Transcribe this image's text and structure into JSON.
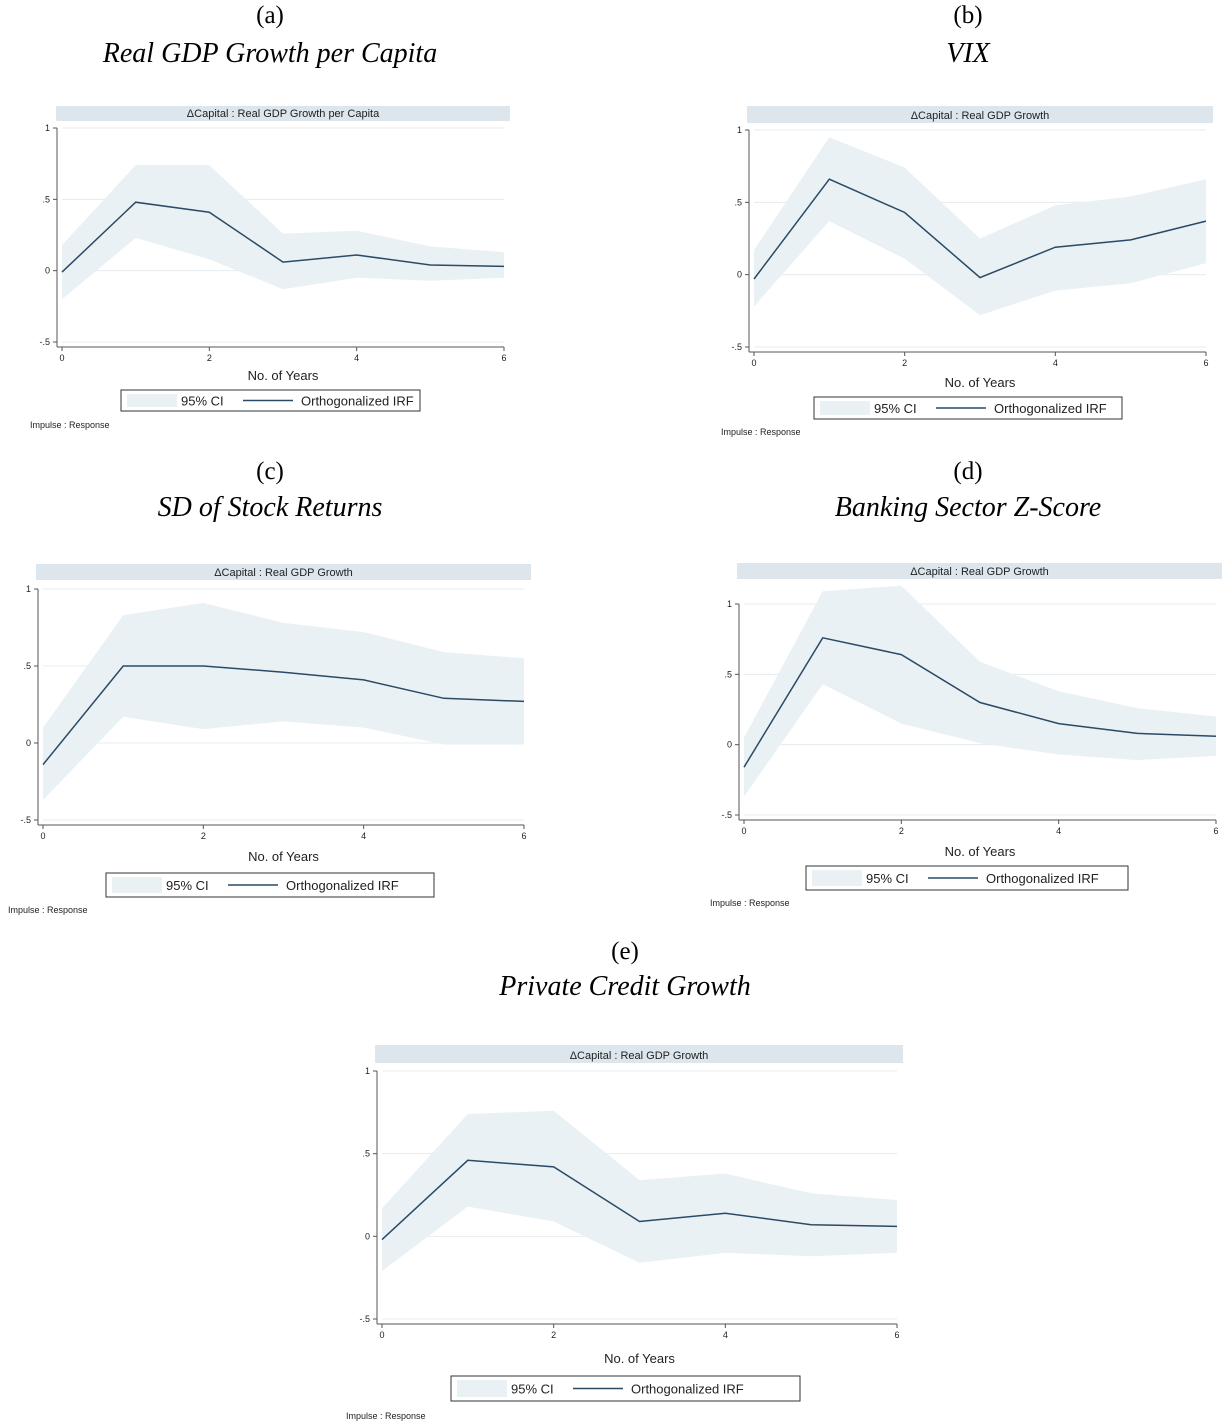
{
  "figure": {
    "panels": [
      {
        "letter": "(a)",
        "name": "Real GDP Growth per Capita",
        "chart_data": {
          "type": "line",
          "title": "ΔCapital : Real GDP Growth per Capita",
          "xlabel": "No. of Years",
          "ylabel": "",
          "x": [
            0,
            1,
            2,
            3,
            4,
            5,
            6
          ],
          "xticks": [
            "0",
            "2",
            "4",
            "6"
          ],
          "yticks": [
            "-.5",
            "0",
            ".5",
            "1"
          ],
          "xlim": [
            0,
            6
          ],
          "ylim": [
            -0.5,
            1
          ],
          "grid": true,
          "legend_position": "bottom",
          "series": [
            {
              "name": "Orthogonalized IRF",
              "kind": "line",
              "values": [
                -0.01,
                0.48,
                0.41,
                0.06,
                0.11,
                0.04,
                0.03
              ],
              "color": "#2a4a66"
            },
            {
              "name": "95% CI",
              "kind": "band",
              "lower": [
                -0.2,
                0.23,
                0.08,
                -0.13,
                -0.05,
                -0.07,
                -0.05
              ],
              "upper": [
                0.18,
                0.74,
                0.74,
                0.26,
                0.28,
                0.17,
                0.13
              ],
              "color": "#eaf1f4"
            }
          ],
          "note": "Impulse : Response"
        }
      },
      {
        "letter": "(b)",
        "name": "VIX",
        "chart_data": {
          "type": "line",
          "title": "ΔCapital : Real GDP Growth",
          "xlabel": "No. of Years",
          "ylabel": "",
          "x": [
            0,
            1,
            2,
            3,
            4,
            5,
            6
          ],
          "xticks": [
            "0",
            "2",
            "4",
            "6"
          ],
          "yticks": [
            "-.5",
            "0",
            ".5",
            "1"
          ],
          "xlim": [
            0,
            6
          ],
          "ylim": [
            -0.5,
            1
          ],
          "grid": true,
          "legend_position": "bottom",
          "series": [
            {
              "name": "Orthogonalized IRF",
              "kind": "line",
              "values": [
                -0.03,
                0.66,
                0.43,
                -0.02,
                0.19,
                0.24,
                0.37
              ],
              "color": "#2a4a66"
            },
            {
              "name": "95% CI",
              "kind": "band",
              "lower": [
                -0.22,
                0.37,
                0.11,
                -0.28,
                -0.11,
                -0.06,
                0.08
              ],
              "upper": [
                0.17,
                0.95,
                0.74,
                0.25,
                0.48,
                0.54,
                0.66
              ],
              "color": "#eaf1f4"
            }
          ],
          "note": "Impulse : Response"
        }
      },
      {
        "letter": "(c)",
        "name": "SD of Stock Returns",
        "chart_data": {
          "type": "line",
          "title": "ΔCapital : Real GDP Growth",
          "xlabel": "No. of Years",
          "ylabel": "",
          "x": [
            0,
            1,
            2,
            3,
            4,
            5,
            6
          ],
          "xticks": [
            "0",
            "2",
            "4",
            "6"
          ],
          "yticks": [
            "-.5",
            "0",
            ".5",
            "1"
          ],
          "xlim": [
            0,
            6
          ],
          "ylim": [
            -0.5,
            1
          ],
          "grid": true,
          "legend_position": "bottom",
          "series": [
            {
              "name": "Orthogonalized IRF",
              "kind": "line",
              "values": [
                -0.14,
                0.5,
                0.5,
                0.46,
                0.41,
                0.29,
                0.27
              ],
              "color": "#2a4a66"
            },
            {
              "name": "95% CI",
              "kind": "band",
              "lower": [
                -0.37,
                0.17,
                0.09,
                0.14,
                0.1,
                -0.01,
                -0.01
              ],
              "upper": [
                0.1,
                0.83,
                0.91,
                0.78,
                0.72,
                0.59,
                0.55
              ],
              "color": "#eaf1f4"
            }
          ],
          "note": "Impulse : Response"
        }
      },
      {
        "letter": "(d)",
        "name": "Banking Sector Z-Score",
        "chart_data": {
          "type": "line",
          "title": "ΔCapital : Real GDP Growth",
          "xlabel": "No. of Years",
          "ylabel": "",
          "x": [
            0,
            1,
            2,
            3,
            4,
            5,
            6
          ],
          "xticks": [
            "0",
            "2",
            "4",
            "6"
          ],
          "yticks": [
            "-.5",
            "0",
            ".5",
            "1"
          ],
          "xlim": [
            0,
            6
          ],
          "ylim": [
            -0.5,
            1
          ],
          "grid": true,
          "legend_position": "bottom",
          "series": [
            {
              "name": "Orthogonalized IRF",
              "kind": "line",
              "values": [
                -0.16,
                0.76,
                0.64,
                0.3,
                0.15,
                0.08,
                0.06
              ],
              "color": "#2a4a66"
            },
            {
              "name": "95% CI",
              "kind": "band",
              "lower": [
                -0.37,
                0.43,
                0.15,
                0.01,
                -0.07,
                -0.11,
                -0.08
              ],
              "upper": [
                0.05,
                1.09,
                1.13,
                0.59,
                0.38,
                0.26,
                0.2
              ],
              "color": "#eaf1f4"
            }
          ],
          "note": "Impulse : Response"
        }
      },
      {
        "letter": "(e)",
        "name": "Private Credit Growth",
        "chart_data": {
          "type": "line",
          "title": "ΔCapital : Real GDP Growth",
          "xlabel": "No. of Years",
          "ylabel": "",
          "x": [
            0,
            1,
            2,
            3,
            4,
            5,
            6
          ],
          "xticks": [
            "0",
            "2",
            "4",
            "6"
          ],
          "yticks": [
            "-.5",
            "0",
            ".5",
            "1"
          ],
          "xlim": [
            0,
            6
          ],
          "ylim": [
            -0.5,
            1
          ],
          "grid": true,
          "legend_position": "bottom",
          "series": [
            {
              "name": "Orthogonalized IRF",
              "kind": "line",
              "values": [
                -0.02,
                0.46,
                0.42,
                0.09,
                0.14,
                0.07,
                0.06
              ],
              "color": "#2a4a66"
            },
            {
              "name": "95% CI",
              "kind": "band",
              "lower": [
                -0.21,
                0.18,
                0.09,
                -0.16,
                -0.1,
                -0.12,
                -0.1
              ],
              "upper": [
                0.17,
                0.74,
                0.76,
                0.34,
                0.38,
                0.26,
                0.22
              ],
              "color": "#eaf1f4"
            }
          ],
          "note": "Impulse : Response"
        }
      }
    ]
  },
  "colors": {
    "title_bar": "#dce6ec",
    "band": "#eaf1f4",
    "line": "#2a4a66",
    "grid": "#e4ecf0",
    "axis": "#555555"
  }
}
